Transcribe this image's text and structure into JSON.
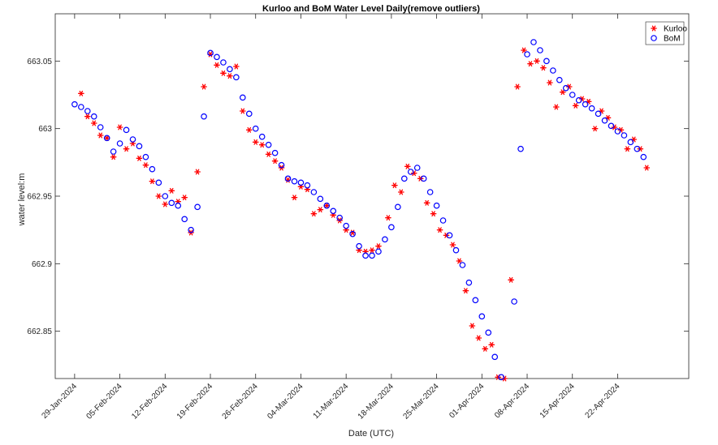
{
  "chart_data": {
    "type": "scatter",
    "title": "Kurloo and BoM Water Level Daily(remove outliers)",
    "xlabel": "Date (UTC)",
    "ylabel": "water level:m",
    "ylim": [
      662.815,
      663.085
    ],
    "yticks": [
      662.85,
      662.9,
      662.95,
      663,
      663.05
    ],
    "ytick_labels": [
      "662.85",
      "662.9",
      "662.95",
      "663",
      "663.05"
    ],
    "xlim": [
      "2024-01-26",
      "2024-05-03"
    ],
    "xticks": [
      "2024-01-29",
      "2024-02-05",
      "2024-02-12",
      "2024-02-19",
      "2024-02-26",
      "2024-03-04",
      "2024-03-11",
      "2024-03-18",
      "2024-03-25",
      "2024-04-01",
      "2024-04-08",
      "2024-04-15",
      "2024-04-22"
    ],
    "xtick_labels": [
      "29-Jan-2024",
      "05-Feb-2024",
      "12-Feb-2024",
      "19-Feb-2024",
      "26-Feb-2024",
      "04-Mar-2024",
      "11-Mar-2024",
      "18-Mar-2024",
      "25-Mar-2024",
      "01-Apr-2024",
      "08-Apr-2024",
      "15-Apr-2024",
      "22-Apr-2024"
    ],
    "grid": false,
    "legend_position": "top-right",
    "series": [
      {
        "name": "Kurloo",
        "marker": "asterisk",
        "color": "#ff0000",
        "points": [
          [
            "2024-01-30T00:00",
            663.026
          ],
          [
            "2024-01-31T00:00",
            663.009
          ],
          [
            "2024-02-01T00:00",
            663.004
          ],
          [
            "2024-02-02T00:00",
            662.995
          ],
          [
            "2024-02-03T00:00",
            662.993
          ],
          [
            "2024-02-04T00:00",
            662.979
          ],
          [
            "2024-02-05T00:00",
            663.001
          ],
          [
            "2024-02-06T00:00",
            662.985
          ],
          [
            "2024-02-07T00:00",
            662.989
          ],
          [
            "2024-02-08T00:00",
            662.978
          ],
          [
            "2024-02-09T00:00",
            662.973
          ],
          [
            "2024-02-10T00:00",
            662.961
          ],
          [
            "2024-02-11T00:00",
            662.95
          ],
          [
            "2024-02-12T00:00",
            662.944
          ],
          [
            "2024-02-13T00:00",
            662.954
          ],
          [
            "2024-02-14T00:00",
            662.946
          ],
          [
            "2024-02-15T00:00",
            662.949
          ],
          [
            "2024-02-16T00:00",
            662.923
          ],
          [
            "2024-02-17T00:00",
            662.968
          ],
          [
            "2024-02-18T00:00",
            663.031
          ],
          [
            "2024-02-19T00:00",
            663.055
          ],
          [
            "2024-02-20T00:00",
            663.047
          ],
          [
            "2024-02-21T00:00",
            663.041
          ],
          [
            "2024-02-22T00:00",
            663.039
          ],
          [
            "2024-02-23T00:00",
            663.046
          ],
          [
            "2024-02-24T00:00",
            663.013
          ],
          [
            "2024-02-25T00:00",
            662.999
          ],
          [
            "2024-02-26T00:00",
            662.99
          ],
          [
            "2024-02-27T00:00",
            662.988
          ],
          [
            "2024-02-28T00:00",
            662.981
          ],
          [
            "2024-02-29T00:00",
            662.976
          ],
          [
            "2024-03-01T00:00",
            662.971
          ],
          [
            "2024-03-02T00:00",
            662.962
          ],
          [
            "2024-03-03T00:00",
            662.949
          ],
          [
            "2024-03-04T00:00",
            662.957
          ],
          [
            "2024-03-05T00:00",
            662.955
          ],
          [
            "2024-03-06T00:00",
            662.937
          ],
          [
            "2024-03-07T00:00",
            662.94
          ],
          [
            "2024-03-08T00:00",
            662.943
          ],
          [
            "2024-03-09T00:00",
            662.936
          ],
          [
            "2024-03-10T00:00",
            662.932
          ],
          [
            "2024-03-11T00:00",
            662.925
          ],
          [
            "2024-03-12T00:00",
            662.923
          ],
          [
            "2024-03-13T00:00",
            662.91
          ],
          [
            "2024-03-14T00:00",
            662.909
          ],
          [
            "2024-03-15T00:00",
            662.91
          ],
          [
            "2024-03-16T00:00",
            662.913
          ],
          [
            "2024-03-17T12:00",
            662.934
          ],
          [
            "2024-03-18T12:00",
            662.958
          ],
          [
            "2024-03-19T12:00",
            662.953
          ],
          [
            "2024-03-20T12:00",
            662.972
          ],
          [
            "2024-03-21T12:00",
            662.967
          ],
          [
            "2024-03-22T12:00",
            662.963
          ],
          [
            "2024-03-23T12:00",
            662.945
          ],
          [
            "2024-03-24T12:00",
            662.937
          ],
          [
            "2024-03-25T12:00",
            662.925
          ],
          [
            "2024-03-26T12:00",
            662.921
          ],
          [
            "2024-03-27T12:00",
            662.914
          ],
          [
            "2024-03-28T12:00",
            662.902
          ],
          [
            "2024-03-29T12:00",
            662.88
          ],
          [
            "2024-03-30T12:00",
            662.854
          ],
          [
            "2024-03-31T12:00",
            662.845
          ],
          [
            "2024-04-01T12:00",
            662.837
          ],
          [
            "2024-04-02T12:00",
            662.84
          ],
          [
            "2024-04-03T12:00",
            662.816
          ],
          [
            "2024-04-04T12:00",
            662.815
          ],
          [
            "2024-04-05T12:00",
            662.888
          ],
          [
            "2024-04-06T12:00",
            663.031
          ],
          [
            "2024-04-07T12:00",
            663.058
          ],
          [
            "2024-04-08T12:00",
            663.048
          ],
          [
            "2024-04-09T12:00",
            663.05
          ],
          [
            "2024-04-10T12:00",
            663.045
          ],
          [
            "2024-04-11T12:00",
            663.034
          ],
          [
            "2024-04-12T12:00",
            663.016
          ],
          [
            "2024-04-13T12:00",
            663.027
          ],
          [
            "2024-04-14T12:00",
            663.031
          ],
          [
            "2024-04-15T12:00",
            663.017
          ],
          [
            "2024-04-16T12:00",
            663.022
          ],
          [
            "2024-04-17T12:00",
            663.02
          ],
          [
            "2024-04-18T12:00",
            663.0
          ],
          [
            "2024-04-19T12:00",
            663.013
          ],
          [
            "2024-04-20T12:00",
            663.008
          ],
          [
            "2024-04-21T12:00",
            663.001
          ],
          [
            "2024-04-22T12:00",
            662.999
          ],
          [
            "2024-04-23T12:00",
            662.985
          ],
          [
            "2024-04-24T12:00",
            662.992
          ],
          [
            "2024-04-25T12:00",
            662.985
          ],
          [
            "2024-04-26T12:00",
            662.971
          ]
        ]
      },
      {
        "name": "BoM",
        "marker": "circle",
        "color": "#0000ff",
        "points": [
          [
            "2024-01-29T00:00",
            663.018
          ],
          [
            "2024-01-30T00:00",
            663.016
          ],
          [
            "2024-01-31T00:00",
            663.013
          ],
          [
            "2024-02-01T00:00",
            663.009
          ],
          [
            "2024-02-02T00:00",
            663.001
          ],
          [
            "2024-02-03T00:00",
            662.993
          ],
          [
            "2024-02-04T00:00",
            662.983
          ],
          [
            "2024-02-05T00:00",
            662.989
          ],
          [
            "2024-02-06T00:00",
            662.999
          ],
          [
            "2024-02-07T00:00",
            662.992
          ],
          [
            "2024-02-08T00:00",
            662.987
          ],
          [
            "2024-02-09T00:00",
            662.979
          ],
          [
            "2024-02-10T00:00",
            662.97
          ],
          [
            "2024-02-11T00:00",
            662.96
          ],
          [
            "2024-02-12T00:00",
            662.95
          ],
          [
            "2024-02-13T00:00",
            662.945
          ],
          [
            "2024-02-14T00:00",
            662.943
          ],
          [
            "2024-02-15T00:00",
            662.933
          ],
          [
            "2024-02-16T00:00",
            662.925
          ],
          [
            "2024-02-17T00:00",
            662.942
          ],
          [
            "2024-02-18T00:00",
            663.009
          ],
          [
            "2024-02-19T00:00",
            663.056
          ],
          [
            "2024-02-20T00:00",
            663.053
          ],
          [
            "2024-02-21T00:00",
            663.049
          ],
          [
            "2024-02-22T00:00",
            663.044
          ],
          [
            "2024-02-23T00:00",
            663.038
          ],
          [
            "2024-02-24T00:00",
            663.023
          ],
          [
            "2024-02-25T00:00",
            663.011
          ],
          [
            "2024-02-26T00:00",
            663.0
          ],
          [
            "2024-02-27T00:00",
            662.994
          ],
          [
            "2024-02-28T00:00",
            662.988
          ],
          [
            "2024-02-29T00:00",
            662.982
          ],
          [
            "2024-03-01T00:00",
            662.973
          ],
          [
            "2024-03-02T00:00",
            662.963
          ],
          [
            "2024-03-03T00:00",
            662.961
          ],
          [
            "2024-03-04T00:00",
            662.96
          ],
          [
            "2024-03-05T00:00",
            662.958
          ],
          [
            "2024-03-06T00:00",
            662.953
          ],
          [
            "2024-03-07T00:00",
            662.948
          ],
          [
            "2024-03-08T00:00",
            662.943
          ],
          [
            "2024-03-09T00:00",
            662.939
          ],
          [
            "2024-03-10T00:00",
            662.934
          ],
          [
            "2024-03-11T00:00",
            662.928
          ],
          [
            "2024-03-12T00:00",
            662.922
          ],
          [
            "2024-03-13T00:00",
            662.913
          ],
          [
            "2024-03-14T00:00",
            662.906
          ],
          [
            "2024-03-15T00:00",
            662.906
          ],
          [
            "2024-03-16T00:00",
            662.909
          ],
          [
            "2024-03-17T00:00",
            662.918
          ],
          [
            "2024-03-18T00:00",
            662.927
          ],
          [
            "2024-03-19T00:00",
            662.942
          ],
          [
            "2024-03-20T00:00",
            662.963
          ],
          [
            "2024-03-21T00:00",
            662.968
          ],
          [
            "2024-03-22T00:00",
            662.971
          ],
          [
            "2024-03-23T00:00",
            662.963
          ],
          [
            "2024-03-24T00:00",
            662.953
          ],
          [
            "2024-03-25T00:00",
            662.943
          ],
          [
            "2024-03-26T00:00",
            662.932
          ],
          [
            "2024-03-27T00:00",
            662.921
          ],
          [
            "2024-03-28T00:00",
            662.91
          ],
          [
            "2024-03-29T00:00",
            662.899
          ],
          [
            "2024-03-30T00:00",
            662.886
          ],
          [
            "2024-03-31T00:00",
            662.873
          ],
          [
            "2024-04-01T00:00",
            662.861
          ],
          [
            "2024-04-02T00:00",
            662.849
          ],
          [
            "2024-04-03T00:00",
            662.831
          ],
          [
            "2024-04-04T00:00",
            662.816
          ],
          [
            "2024-04-06T00:00",
            662.872
          ],
          [
            "2024-04-07T00:00",
            662.985
          ],
          [
            "2024-04-08T00:00",
            663.055
          ],
          [
            "2024-04-09T00:00",
            663.064
          ],
          [
            "2024-04-10T00:00",
            663.058
          ],
          [
            "2024-04-11T00:00",
            663.05
          ],
          [
            "2024-04-12T00:00",
            663.043
          ],
          [
            "2024-04-13T00:00",
            663.036
          ],
          [
            "2024-04-14T00:00",
            663.03
          ],
          [
            "2024-04-15T00:00",
            663.025
          ],
          [
            "2024-04-16T00:00",
            663.021
          ],
          [
            "2024-04-17T00:00",
            663.018
          ],
          [
            "2024-04-18T00:00",
            663.015
          ],
          [
            "2024-04-19T00:00",
            663.011
          ],
          [
            "2024-04-20T00:00",
            663.006
          ],
          [
            "2024-04-21T00:00",
            663.002
          ],
          [
            "2024-04-22T00:00",
            662.998
          ],
          [
            "2024-04-23T00:00",
            662.995
          ],
          [
            "2024-04-24T00:00",
            662.99
          ],
          [
            "2024-04-25T00:00",
            662.985
          ],
          [
            "2024-04-26T00:00",
            662.979
          ]
        ]
      }
    ]
  }
}
